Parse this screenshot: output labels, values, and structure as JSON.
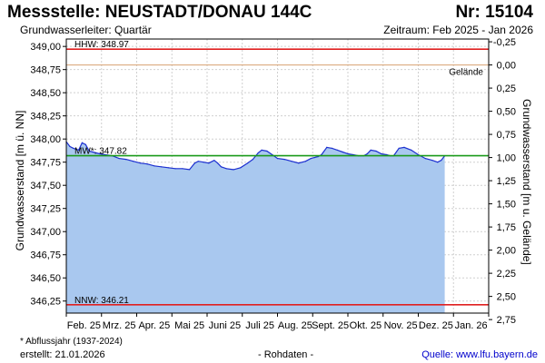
{
  "header": {
    "title": "Messstelle: NEUSTADT/DONAU 144C",
    "number": "Nr: 15104",
    "aquifer": "Grundwasserleiter: Quartär",
    "period": "Zeitraum: Feb 2025 - Jan 2026"
  },
  "footer": {
    "footnote": "* Abflussjahr (1937-2024)",
    "created": "erstellt:  21.01.2026",
    "rawdata": "- Rohdaten -",
    "source": "Quelle:  www.lfu.bayern.de"
  },
  "colors": {
    "area_fill": "#a9c8ef",
    "series_line": "#1c2fd0",
    "hhw_line": "#e02020",
    "nnw_line": "#e02020",
    "mw_line": "#1a9a1a",
    "ground_line": "#d7a070",
    "grid": "#cfcfcf"
  },
  "chart_data": {
    "type": "area",
    "title": "",
    "ylabel": "Grundwasserstand [m ü. NN]",
    "ylabel_right": "Grundwasserstand [m u. Gelände]",
    "ylim": [
      346.12,
      349.08
    ],
    "yticks": [
      "349,00",
      "348,75",
      "348,50",
      "348,25",
      "348,00",
      "347,75",
      "347,50",
      "347,25",
      "347,00",
      "346,75",
      "346,50",
      "346,25"
    ],
    "yticks_right": [
      "-0,25",
      "0,00",
      "0,25",
      "0,50",
      "0,75",
      "1,00",
      "1,25",
      "1,50",
      "1,75",
      "2,00",
      "2,25",
      "2,50",
      "2,75"
    ],
    "ground_level": 348.8,
    "x_categories": [
      "Feb. 25",
      "Mrz. 25",
      "Apr. 25",
      "Mai 25",
      "Juni 25",
      "Juli 25",
      "Aug. 25",
      "Sept. 25",
      "Okt. 25",
      "Nov. 25",
      "Dez. 25",
      "Jan. 26"
    ],
    "reference_lines": [
      {
        "label": "HHW: 348.97",
        "value": 348.97,
        "color_key": "hhw_line"
      },
      {
        "label": "Gelände",
        "value": 348.8,
        "color_key": "ground_line"
      },
      {
        "label": "MW*: 347.82",
        "value": 347.82,
        "color_key": "mw_line"
      },
      {
        "label": "NNW: 346.21",
        "value": 346.21,
        "color_key": "nnw_line"
      }
    ],
    "series": [
      {
        "x": [
          0.0,
          0.1,
          0.2,
          0.35,
          0.45,
          0.55,
          0.65,
          0.75,
          0.85,
          0.95,
          1.1,
          1.3,
          1.5,
          1.7,
          1.9,
          2.1,
          2.3,
          2.5,
          2.7,
          2.9,
          3.1,
          3.3,
          3.5,
          3.65,
          3.75,
          3.9,
          4.05,
          4.2,
          4.3,
          4.4,
          4.55,
          4.75,
          4.95,
          5.15,
          5.3,
          5.45,
          5.55,
          5.7,
          5.85,
          6.0,
          6.2,
          6.4,
          6.6,
          6.8,
          6.95,
          7.05,
          7.15,
          7.25,
          7.4,
          7.55,
          7.7,
          7.85,
          8.0,
          8.15,
          8.3,
          8.45,
          8.55,
          8.65,
          8.8,
          8.95,
          9.1,
          9.2,
          9.3,
          9.45,
          9.6,
          9.8,
          10.0,
          10.2,
          10.4,
          10.55,
          10.65,
          10.75
        ],
        "y": [
          347.97,
          347.92,
          347.9,
          347.88,
          347.96,
          347.94,
          347.87,
          347.86,
          347.85,
          347.84,
          347.83,
          347.82,
          347.79,
          347.78,
          347.76,
          347.74,
          347.73,
          347.71,
          347.7,
          347.69,
          347.68,
          347.68,
          347.67,
          347.74,
          347.76,
          347.75,
          347.74,
          347.77,
          347.74,
          347.7,
          347.68,
          347.67,
          347.69,
          347.74,
          347.78,
          347.85,
          347.88,
          347.87,
          347.83,
          347.79,
          347.78,
          347.76,
          347.74,
          347.76,
          347.79,
          347.8,
          347.81,
          347.83,
          347.91,
          347.9,
          347.88,
          347.86,
          347.84,
          347.83,
          347.82,
          347.82,
          347.84,
          347.88,
          347.87,
          347.84,
          347.83,
          347.82,
          347.82,
          347.9,
          347.91,
          347.88,
          347.83,
          347.79,
          347.77,
          347.75,
          347.77,
          347.82
        ]
      }
    ]
  }
}
